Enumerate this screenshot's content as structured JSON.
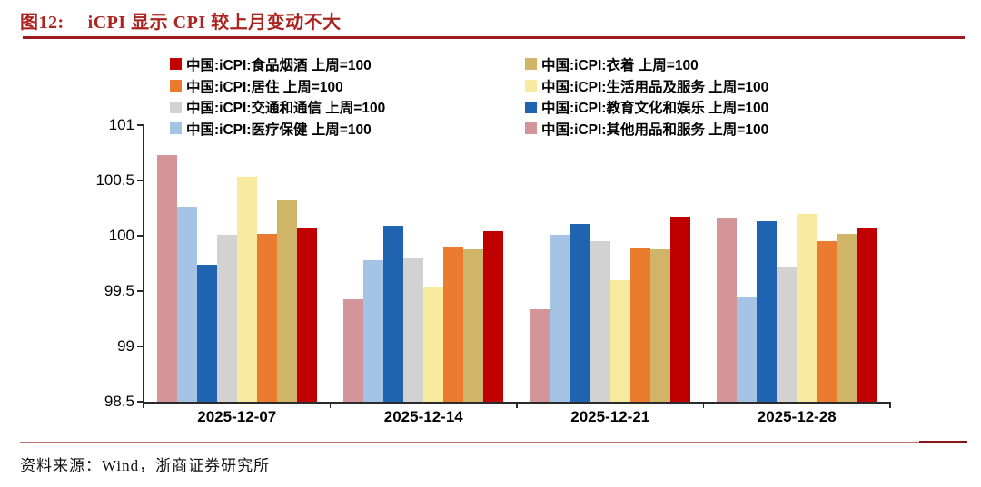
{
  "header": {
    "title_prefix": "图12:",
    "title_text": "iCPI 显示 CPI 较上月变动不大",
    "accent_color": "#AC2420",
    "rule_color": "#9E1B20"
  },
  "footer": {
    "source": "资料来源：Wind，浙商证券研究所",
    "thin_rule_color": "#C27070",
    "thick_rule_color": "#8A1518"
  },
  "chart_data": {
    "type": "bar",
    "title": "iCPI 显示 CPI 较上月变动不大",
    "categories": [
      "2025-12-07",
      "2025-12-14",
      "2025-12-21",
      "2025-12-28"
    ],
    "ylim": [
      98.5,
      101
    ],
    "ytick_labels": [
      "98.5",
      "99",
      "99.5",
      "100",
      "100.5",
      "101"
    ],
    "grid": false,
    "legend_position": "top",
    "legend_columns": 2,
    "legend": [
      {
        "label": "中国:iCPI:食品烟酒 上周=100",
        "color": "#C00000"
      },
      {
        "label": "中国:iCPI:衣着 上周=100",
        "color": "#D0B467"
      },
      {
        "label": "中国:iCPI:居住 上周=100",
        "color": "#EA7B2F"
      },
      {
        "label": "中国:iCPI:生活用品及服务 上周=100",
        "color": "#F8EBA0"
      },
      {
        "label": "中国:iCPI:交通和通信 上周=100",
        "color": "#D2D2D2"
      },
      {
        "label": "中国:iCPI:教育文化和娱乐 上周=100",
        "color": "#1F64B0"
      },
      {
        "label": "中国:iCPI:医疗保健 上周=100",
        "color": "#A5C3E4"
      },
      {
        "label": "中国:iCPI:其他用品和服务 上周=100",
        "color": "#D39598"
      }
    ],
    "series": [
      {
        "name": "中国:iCPI:其他用品和服务 上周=100",
        "color": "#D39598",
        "values": [
          100.73,
          99.43,
          99.34,
          100.16
        ]
      },
      {
        "name": "中国:iCPI:医疗保健 上周=100",
        "color": "#A5C3E4",
        "values": [
          100.26,
          99.78,
          100.01,
          99.44
        ]
      },
      {
        "name": "中国:iCPI:教育文化和娱乐 上周=100",
        "color": "#1F64B0",
        "values": [
          99.74,
          100.09,
          100.11,
          100.13
        ]
      },
      {
        "name": "中国:iCPI:交通和通信 上周=100",
        "color": "#D2D2D2",
        "values": [
          100.01,
          99.8,
          99.95,
          99.72
        ]
      },
      {
        "name": "中国:iCPI:生活用品及服务 上周=100",
        "color": "#F8EBA0",
        "values": [
          100.53,
          99.54,
          99.6,
          100.2
        ]
      },
      {
        "name": "中国:iCPI:居住 上周=100",
        "color": "#EA7B2F",
        "values": [
          100.02,
          99.9,
          99.89,
          99.95
        ]
      },
      {
        "name": "中国:iCPI:衣着 上周=100",
        "color": "#D0B467",
        "values": [
          100.32,
          99.88,
          99.88,
          100.02
        ]
      },
      {
        "name": "中国:iCPI:食品烟酒 上周=100",
        "color": "#C00000",
        "values": [
          100.07,
          100.04,
          100.17,
          100.07
        ]
      }
    ]
  }
}
